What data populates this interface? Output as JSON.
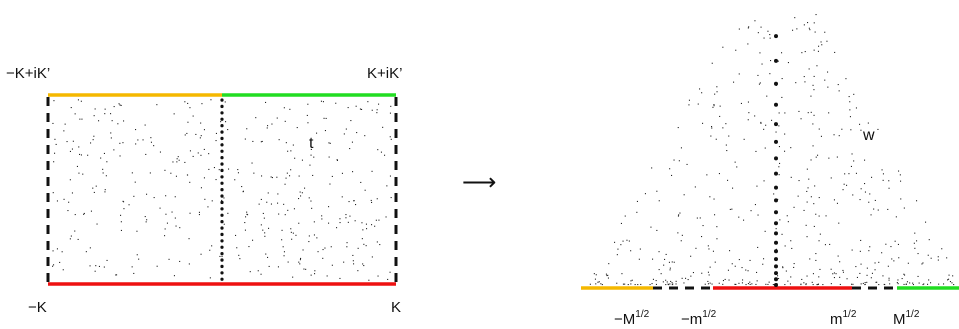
{
  "left_panel": {
    "corner_top_left": "−K+iK’",
    "corner_top_right": "K+iK’",
    "corner_bottom_left": "−K",
    "corner_bottom_right": "K",
    "variable": "t"
  },
  "mapping_arrow": "⟶",
  "right_panel": {
    "variable": "w",
    "tick_neg_M": {
      "base": "−M",
      "exp": "1/2"
    },
    "tick_neg_m": {
      "base": "−m",
      "exp": "1/2"
    },
    "tick_m": {
      "base": "m",
      "exp": "1/2"
    },
    "tick_M": {
      "base": "M",
      "exp": "1/2"
    }
  },
  "colors": {
    "top_left_edge": "#f5b800",
    "top_right_edge": "#22dd22",
    "bottom_edge": "#ee1111",
    "dashed_edges": "#111111",
    "dotted_center": "#111111",
    "speckle": "#222222"
  }
}
